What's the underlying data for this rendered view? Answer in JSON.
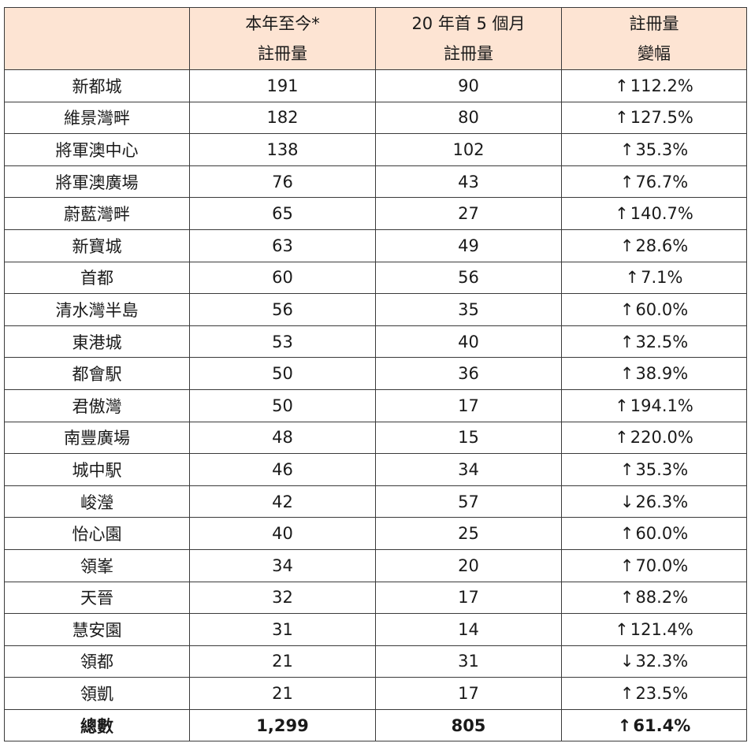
{
  "header": {
    "col0": "",
    "col1": [
      "本年至今*",
      "註冊量"
    ],
    "col2": [
      "20 年首 5 個月",
      "註冊量"
    ],
    "col3": [
      "註冊量",
      "變幅"
    ]
  },
  "rows": [
    {
      "name": "新都城",
      "ytd": "191",
      "prev": "90",
      "dir": "up",
      "arrow": "↑",
      "change": "112.2%"
    },
    {
      "name": "維景灣畔",
      "ytd": "182",
      "prev": "80",
      "dir": "up",
      "arrow": "↑",
      "change": "127.5%"
    },
    {
      "name": "將軍澳中心",
      "ytd": "138",
      "prev": "102",
      "dir": "up",
      "arrow": "↑",
      "change": "35.3%"
    },
    {
      "name": "將軍澳廣場",
      "ytd": "76",
      "prev": "43",
      "dir": "up",
      "arrow": "↑",
      "change": "76.7%"
    },
    {
      "name": "蔚藍灣畔",
      "ytd": "65",
      "prev": "27",
      "dir": "up",
      "arrow": "↑",
      "change": "140.7%"
    },
    {
      "name": "新寶城",
      "ytd": "63",
      "prev": "49",
      "dir": "up",
      "arrow": "↑",
      "change": "28.6%"
    },
    {
      "name": "首都",
      "ytd": "60",
      "prev": "56",
      "dir": "up",
      "arrow": "↑",
      "change": "7.1%"
    },
    {
      "name": "清水灣半島",
      "ytd": "56",
      "prev": "35",
      "dir": "up",
      "arrow": "↑",
      "change": "60.0%"
    },
    {
      "name": "東港城",
      "ytd": "53",
      "prev": "40",
      "dir": "up",
      "arrow": "↑",
      "change": "32.5%"
    },
    {
      "name": "都會駅",
      "ytd": "50",
      "prev": "36",
      "dir": "up",
      "arrow": "↑",
      "change": "38.9%"
    },
    {
      "name": "君傲灣",
      "ytd": "50",
      "prev": "17",
      "dir": "up",
      "arrow": "↑",
      "change": "194.1%"
    },
    {
      "name": "南豐廣場",
      "ytd": "48",
      "prev": "15",
      "dir": "up",
      "arrow": "↑",
      "change": "220.0%"
    },
    {
      "name": "城中駅",
      "ytd": "46",
      "prev": "34",
      "dir": "up",
      "arrow": "↑",
      "change": "35.3%"
    },
    {
      "name": "峻瀅",
      "ytd": "42",
      "prev": "57",
      "dir": "down",
      "arrow": "↓",
      "change": "26.3%"
    },
    {
      "name": "怡心園",
      "ytd": "40",
      "prev": "25",
      "dir": "up",
      "arrow": "↑",
      "change": "60.0%"
    },
    {
      "name": "領峯",
      "ytd": "34",
      "prev": "20",
      "dir": "up",
      "arrow": "↑",
      "change": "70.0%"
    },
    {
      "name": "天晉",
      "ytd": "32",
      "prev": "17",
      "dir": "up",
      "arrow": "↑",
      "change": "88.2%"
    },
    {
      "name": "慧安園",
      "ytd": "31",
      "prev": "14",
      "dir": "up",
      "arrow": "↑",
      "change": "121.4%"
    },
    {
      "name": "領都",
      "ytd": "21",
      "prev": "31",
      "dir": "down",
      "arrow": "↓",
      "change": "32.3%"
    },
    {
      "name": "領凱",
      "ytd": "21",
      "prev": "17",
      "dir": "up",
      "arrow": "↑",
      "change": "23.5%"
    }
  ],
  "total": {
    "name": "總數",
    "ytd": "1,299",
    "prev": "805",
    "dir": "up",
    "arrow": "↑",
    "change": "61.4%"
  },
  "colors": {
    "header_bg": "#fde4d3",
    "up": "#1c1ccc",
    "down": "#e01b1b",
    "border": "#3a3a3a"
  }
}
